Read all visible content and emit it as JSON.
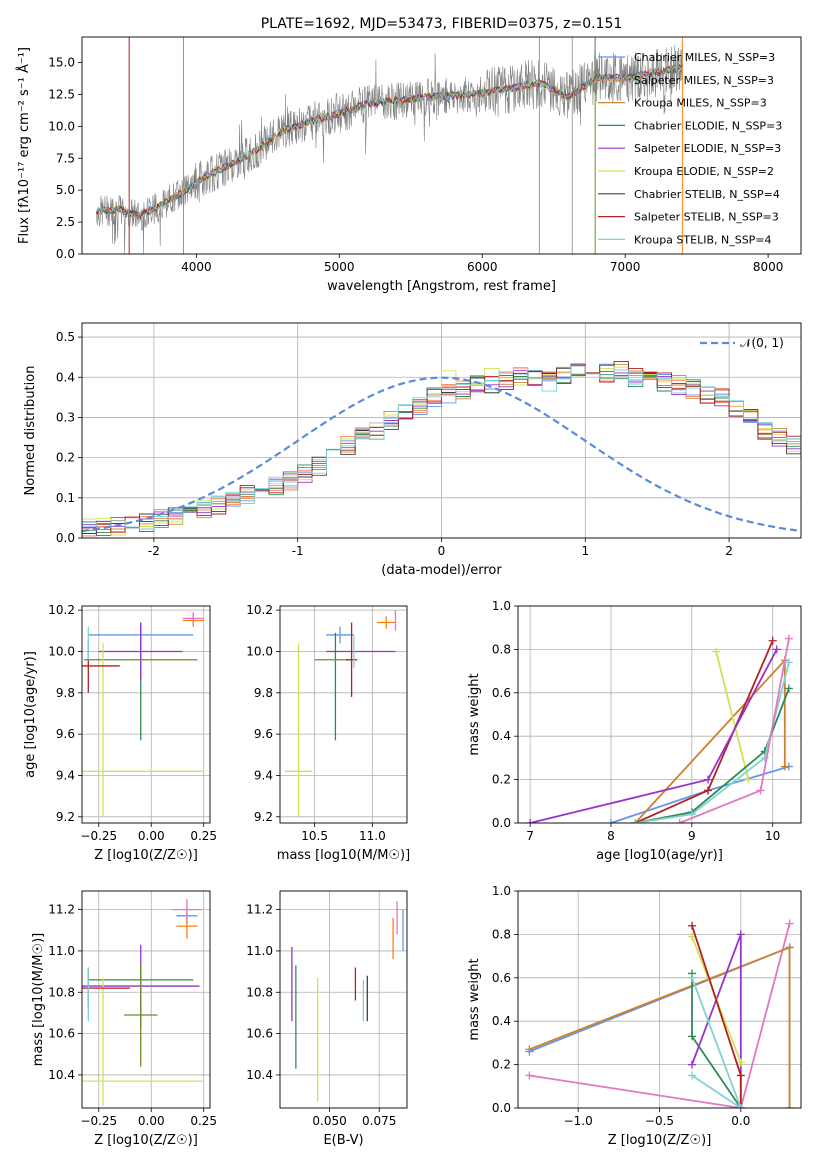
{
  "chart_data": [
    {
      "type": "line",
      "title": "PLATE=1692, MJD=53473, FIBERID=0375, z=0.151",
      "xlabel": "wavelength [Angstrom, rest frame]",
      "ylabel": "Flux [fλ10⁻¹⁷ erg cm⁻² s⁻¹ Å⁻¹]",
      "xlim": [
        3200,
        8230
      ],
      "ylim": [
        0,
        17
      ],
      "xticks": [
        4000,
        5000,
        6000,
        7000,
        8000
      ],
      "yticks": [
        0.0,
        2.5,
        5.0,
        7.5,
        10.0,
        12.5,
        15.0
      ],
      "grid": false,
      "legend_position": "top-right",
      "observed_spectrum": {
        "color": "#808080",
        "x_range": [
          3300,
          7400
        ],
        "shape_points": [
          {
            "x": 3300,
            "y": 3.3
          },
          {
            "x": 3450,
            "y": 3.5
          },
          {
            "x": 3600,
            "y": 3.0
          },
          {
            "x": 3750,
            "y": 3.8
          },
          {
            "x": 3900,
            "y": 4.8
          },
          {
            "x": 4050,
            "y": 6.0
          },
          {
            "x": 4200,
            "y": 6.8
          },
          {
            "x": 4400,
            "y": 8.0
          },
          {
            "x": 4600,
            "y": 9.6
          },
          {
            "x": 4800,
            "y": 10.4
          },
          {
            "x": 5000,
            "y": 11.0
          },
          {
            "x": 5200,
            "y": 11.8
          },
          {
            "x": 5400,
            "y": 12.0
          },
          {
            "x": 5600,
            "y": 12.3
          },
          {
            "x": 5800,
            "y": 12.4
          },
          {
            "x": 6000,
            "y": 12.6
          },
          {
            "x": 6200,
            "y": 13.0
          },
          {
            "x": 6400,
            "y": 13.4
          },
          {
            "x": 6600,
            "y": 12.3
          },
          {
            "x": 6800,
            "y": 13.8
          },
          {
            "x": 7000,
            "y": 13.8
          },
          {
            "x": 7200,
            "y": 14.2
          },
          {
            "x": 7400,
            "y": 14.6
          }
        ]
      },
      "vertical_lines": [
        {
          "x": 3530,
          "color": "#b22222"
        },
        {
          "x": 3910,
          "color": "#cd853f"
        },
        {
          "x": 6400,
          "color": "#a0a0a0"
        },
        {
          "x": 6630,
          "color": "#a0a0a0"
        },
        {
          "x": 6790,
          "color": "#6b8e23"
        },
        {
          "x": 7400,
          "color": "#ff7f0e"
        }
      ],
      "series": [
        {
          "name": "Chabrier MILES, N_SSP=3",
          "color": "#6495ed"
        },
        {
          "name": "Salpeter MILES, N_SSP=3",
          "color": "#ff7f50"
        },
        {
          "name": "Kroupa MILES, N_SSP=3",
          "color": "#cd853f"
        },
        {
          "name": "Chabrier ELODIE, N_SSP=3",
          "color": "#2e8b57"
        },
        {
          "name": "Salpeter ELODIE, N_SSP=3",
          "color": "#9932cc"
        },
        {
          "name": "Kroupa ELODIE, N_SSP=2",
          "color": "#d4e157"
        },
        {
          "name": "Chabrier STELIB, N_SSP=4",
          "color": "#404040"
        },
        {
          "name": "Salpeter STELIB, N_SSP=3",
          "color": "#b22222"
        },
        {
          "name": "Kroupa STELIB, N_SSP=4",
          "color": "#7fd3d3"
        }
      ]
    },
    {
      "type": "histogram",
      "xlabel": "(data-model)/error",
      "ylabel": "Normed distribution",
      "xlim": [
        -2.5,
        2.5
      ],
      "ylim": [
        0,
        0.535
      ],
      "xticks": [
        -2,
        -1,
        0,
        1,
        2
      ],
      "yticks": [
        0.0,
        0.1,
        0.2,
        0.3,
        0.4,
        0.5
      ],
      "grid": true,
      "legend_position": "top-right",
      "reference": {
        "label": "𝒩(0, 1)",
        "color": "#5b8bd9",
        "linestyle": "dashed"
      },
      "bin_edges_start": -2.5,
      "bin_width": 0.1,
      "hist_base": [
        0.03,
        0.03,
        0.03,
        0.03,
        0.04,
        0.05,
        0.05,
        0.06,
        0.07,
        0.08,
        0.09,
        0.11,
        0.12,
        0.13,
        0.14,
        0.16,
        0.18,
        0.21,
        0.23,
        0.25,
        0.27,
        0.29,
        0.31,
        0.33,
        0.35,
        0.36,
        0.37,
        0.38,
        0.38,
        0.39,
        0.4,
        0.4,
        0.39,
        0.4,
        0.41,
        0.42,
        0.41,
        0.42,
        0.4,
        0.4,
        0.39,
        0.38,
        0.37,
        0.36,
        0.35,
        0.32,
        0.3,
        0.27,
        0.25,
        0.23,
        0.22,
        0.2,
        0.18,
        0.17,
        0.15,
        0.13,
        0.12,
        0.11,
        0.1,
        0.09,
        0.08,
        0.07,
        0.06,
        0.05,
        0.05,
        0.04,
        0.04,
        0.04,
        0.03,
        0.03,
        0.03
      ],
      "series": [
        {
          "name": "Chabrier MILES",
          "color": "#6495ed"
        },
        {
          "name": "Salpeter MILES",
          "color": "#ff7f50"
        },
        {
          "name": "Kroupa MILES",
          "color": "#cd853f"
        },
        {
          "name": "Chabrier ELODIE",
          "color": "#2e8b57"
        },
        {
          "name": "Salpeter ELODIE",
          "color": "#9932cc"
        },
        {
          "name": "Kroupa ELODIE",
          "color": "#d4e157"
        },
        {
          "name": "Chabrier STELIB",
          "color": "#404040"
        },
        {
          "name": "Salpeter STELIB",
          "color": "#b22222"
        },
        {
          "name": "Kroupa STELIB",
          "color": "#7fd3d3"
        }
      ]
    },
    {
      "type": "scatter",
      "xlabel": "Z [log10(Z/Z☉)]",
      "ylabel": "age [log10(age/yr)]",
      "xlim": [
        -0.33,
        0.28
      ],
      "ylim": [
        9.17,
        10.22
      ],
      "xticks": [
        -0.25,
        0.0,
        0.25
      ],
      "xticklabels": [
        "−0.25",
        "0.00",
        "0.25"
      ],
      "yticks": [
        9.2,
        9.4,
        9.6,
        9.8,
        10.0,
        10.2
      ],
      "yticklabels": [
        "9.2",
        "9.4",
        "9.6",
        "9.8",
        "10.0",
        "10.2"
      ],
      "grid": true,
      "points": [
        {
          "x": -0.05,
          "y": 10.08,
          "xerr": 0.25,
          "yerr": 0.06,
          "color": "#6495ed"
        },
        {
          "x": 0.2,
          "y": 10.15,
          "xerr": 0.05,
          "yerr": 0.03,
          "color": "#ff7f0e"
        },
        {
          "x": 0.2,
          "y": 10.16,
          "xerr": 0.05,
          "yerr": 0.03,
          "color": "#e377c2"
        },
        {
          "x": -0.05,
          "y": 9.85,
          "xerr": 0.0,
          "yerr": 0.28,
          "color": "#2e8b57"
        },
        {
          "x": -0.05,
          "y": 10.0,
          "xerr": 0.2,
          "yerr": 0.14,
          "color": "#9932cc"
        },
        {
          "x": -0.05,
          "y": 9.96,
          "xerr": 0.27,
          "yerr": 0.0,
          "color": "#6b8e23"
        },
        {
          "x": -0.05,
          "y": 9.42,
          "xerr": 0.3,
          "yerr": 0.0,
          "color": "#d4e157"
        },
        {
          "x": -0.23,
          "y": 9.62,
          "xerr": 0.0,
          "yerr": 0.42,
          "color": "#d4e157"
        },
        {
          "x": -0.3,
          "y": 9.93,
          "xerr": 0.15,
          "yerr": 0.13,
          "color": "#b22222"
        },
        {
          "x": -0.3,
          "y": 10.04,
          "xerr": 0.0,
          "yerr": 0.08,
          "color": "#7fd3d3"
        }
      ]
    },
    {
      "type": "scatter",
      "xlabel": "mass [log10(M/M☉)]",
      "ylabel": "",
      "xlim": [
        10.2,
        11.3
      ],
      "ylim": [
        9.17,
        10.22
      ],
      "xticks": [
        10.5,
        11.0
      ],
      "xticklabels": [
        "10.5",
        "11.0"
      ],
      "yticks": [
        9.2,
        9.4,
        9.6,
        9.8,
        10.0,
        10.2
      ],
      "yticklabels": [
        "9.2",
        "9.4",
        "9.6",
        "9.8",
        "10.0",
        "10.2"
      ],
      "grid": true,
      "points": [
        {
          "x": 10.72,
          "y": 10.08,
          "xerr": 0.12,
          "yerr": 0.04,
          "color": "#6495ed"
        },
        {
          "x": 11.12,
          "y": 10.14,
          "xerr": 0.08,
          "yerr": 0.03,
          "color": "#ff7f0e"
        },
        {
          "x": 11.2,
          "y": 10.15,
          "xerr": 0.0,
          "yerr": 0.05,
          "color": "#e377c2"
        },
        {
          "x": 10.68,
          "y": 9.83,
          "xerr": 0.0,
          "yerr": 0.26,
          "color": "#2e8b57"
        },
        {
          "x": 10.9,
          "y": 10.0,
          "xerr": 0.3,
          "yerr": 0.0,
          "color": "#9932cc"
        },
        {
          "x": 10.68,
          "y": 9.96,
          "xerr": 0.18,
          "yerr": 0.0,
          "color": "#6b8e23"
        },
        {
          "x": 10.36,
          "y": 9.42,
          "xerr": 0.12,
          "yerr": 0.0,
          "color": "#d4e157"
        },
        {
          "x": 10.36,
          "y": 9.62,
          "xerr": 0.0,
          "yerr": 0.42,
          "color": "#d4e157"
        },
        {
          "x": 10.82,
          "y": 9.96,
          "xerr": 0.05,
          "yerr": 0.18,
          "color": "#b22222"
        },
        {
          "x": 10.84,
          "y": 10.0,
          "xerr": 0.0,
          "yerr": 0.08,
          "color": "#7fd3d3"
        }
      ]
    },
    {
      "type": "line",
      "xlabel": "age [log10(age/yr)]",
      "ylabel": "mass weight",
      "xlim": [
        6.85,
        10.35
      ],
      "ylim": [
        0,
        1.0
      ],
      "xticks": [
        7,
        8,
        9,
        10
      ],
      "yticks": [
        0.0,
        0.2,
        0.4,
        0.6,
        0.8,
        1.0
      ],
      "grid": true,
      "series": [
        {
          "name": "Chabrier MILES",
          "color": "#6495ed",
          "x": [
            8.0,
            9.2,
            10.2
          ],
          "y": [
            0.0,
            0.15,
            0.26
          ]
        },
        {
          "name": "Kroupa MILES",
          "color": "#d0802a",
          "x": [
            8.3,
            10.15,
            10.15
          ],
          "y": [
            0.0,
            0.75,
            0.26
          ]
        },
        {
          "name": "Kroupa ELODIE",
          "color": "#d4e157",
          "x": [
            9.3,
            9.7
          ],
          "y": [
            0.79,
            0.2
          ]
        },
        {
          "name": "Chabrier ELODIE",
          "color": "#2e8b57",
          "x": [
            8.3,
            9.0,
            9.9,
            10.2
          ],
          "y": [
            0.0,
            0.05,
            0.33,
            0.62
          ]
        },
        {
          "name": "Salpeter STELIB",
          "color": "#b22222",
          "x": [
            8.3,
            9.2,
            10.0
          ],
          "y": [
            0.0,
            0.15,
            0.84
          ]
        },
        {
          "name": "Kroupa STELIB",
          "color": "#7fd3d3",
          "x": [
            8.3,
            9.0,
            9.9,
            10.2
          ],
          "y": [
            0.0,
            0.04,
            0.3,
            0.74
          ]
        },
        {
          "name": "Salpeter ELODIE",
          "color": "#9932cc",
          "x": [
            7.0,
            9.2,
            10.05
          ],
          "y": [
            0.0,
            0.2,
            0.8
          ]
        },
        {
          "name": "Salpeter MILES",
          "color": "#e377c2",
          "x": [
            8.85,
            9.85,
            10.2
          ],
          "y": [
            0.0,
            0.15,
            0.85
          ]
        }
      ]
    },
    {
      "type": "scatter",
      "xlabel": "Z [log10(Z/Z☉)]",
      "ylabel": "mass [log10(M/M☉)]",
      "xlim": [
        -0.33,
        0.28
      ],
      "ylim": [
        10.24,
        11.29
      ],
      "xticks": [
        -0.25,
        0.0,
        0.25
      ],
      "xticklabels": [
        "−0.25",
        "0.00",
        "0.25"
      ],
      "yticks": [
        10.4,
        10.6,
        10.8,
        11.0,
        11.2
      ],
      "yticklabels": [
        "10.4",
        "10.6",
        "10.8",
        "11.0",
        "11.2"
      ],
      "grid": true,
      "points": [
        {
          "x": 0.17,
          "y": 11.17,
          "xerr": 0.05,
          "yerr": 0.04,
          "color": "#6495ed"
        },
        {
          "x": 0.17,
          "y": 11.12,
          "xerr": 0.05,
          "yerr": 0.06,
          "color": "#ff7f0e"
        },
        {
          "x": 0.17,
          "y": 11.2,
          "xerr": 0.07,
          "yerr": 0.05,
          "color": "#e377c2"
        },
        {
          "x": -0.05,
          "y": 10.86,
          "xerr": 0.25,
          "yerr": 0.0,
          "color": "#2e8b57"
        },
        {
          "x": -0.05,
          "y": 10.83,
          "xerr": 0.28,
          "yerr": 0.2,
          "color": "#9932cc"
        },
        {
          "x": -0.05,
          "y": 10.69,
          "xerr": 0.08,
          "yerr": 0.25,
          "color": "#6b8e23"
        },
        {
          "x": -0.05,
          "y": 10.37,
          "xerr": 0.3,
          "yerr": 0.0,
          "color": "#d4e157"
        },
        {
          "x": -0.23,
          "y": 10.56,
          "xerr": 0.0,
          "yerr": 0.31,
          "color": "#d4e157"
        },
        {
          "x": -0.3,
          "y": 10.82,
          "xerr": 0.2,
          "yerr": 0.1,
          "color": "#b22222"
        },
        {
          "x": -0.3,
          "y": 10.79,
          "xerr": 0.0,
          "yerr": 0.13,
          "color": "#7fd3d3"
        }
      ]
    },
    {
      "type": "scatter",
      "xlabel": "E(B-V)",
      "ylabel": "",
      "xlim": [
        0.025,
        0.089
      ],
      "ylim": [
        10.24,
        11.29
      ],
      "xticks": [
        0.05,
        0.075
      ],
      "xticklabels": [
        "0.050",
        "0.075"
      ],
      "yticks": [
        10.4,
        10.6,
        10.8,
        11.0,
        11.2
      ],
      "yticklabels": [
        "10.4",
        "10.6",
        "10.8",
        "11.0",
        "11.2"
      ],
      "grid": true,
      "points": [
        {
          "x": 0.031,
          "y": 10.84,
          "yerr": 0.18,
          "color": "#9932cc"
        },
        {
          "x": 0.033,
          "y": 10.68,
          "yerr": 0.25,
          "color": "#2e8b57"
        },
        {
          "x": 0.044,
          "y": 10.57,
          "yerr": 0.3,
          "color": "#d4e157"
        },
        {
          "x": 0.063,
          "y": 10.84,
          "yerr": 0.08,
          "color": "#b22222"
        },
        {
          "x": 0.067,
          "y": 10.76,
          "yerr": 0.1,
          "color": "#7fd3d3"
        },
        {
          "x": 0.069,
          "y": 10.77,
          "yerr": 0.11,
          "color": "#404040"
        },
        {
          "x": 0.082,
          "y": 11.06,
          "yerr": 0.1,
          "color": "#ff7f0e"
        },
        {
          "x": 0.084,
          "y": 11.16,
          "yerr": 0.08,
          "color": "#e377c2"
        },
        {
          "x": 0.087,
          "y": 11.1,
          "yerr": 0.1,
          "color": "#6495ed"
        }
      ]
    },
    {
      "type": "line",
      "xlabel": "Z [log10(Z/Z☉)]",
      "ylabel": "mass weight",
      "xlim": [
        -1.37,
        0.37
      ],
      "ylim": [
        0,
        1.0
      ],
      "xticks": [
        -1.0,
        -0.5,
        0.0
      ],
      "xticklabels": [
        "−1.0",
        "−0.5",
        "0.0"
      ],
      "yticks": [
        0.0,
        0.2,
        0.4,
        0.6,
        0.8,
        1.0
      ],
      "grid": true,
      "series": [
        {
          "name": "Chabrier MILES",
          "color": "#6495ed",
          "x": [
            -1.3,
            0.3,
            0.3
          ],
          "y": [
            0.26,
            0.74,
            0.0
          ]
        },
        {
          "name": "Salpeter MILES",
          "color": "#e377c2",
          "x": [
            -1.3,
            0.0,
            0.3
          ],
          "y": [
            0.15,
            0.0,
            0.85
          ]
        },
        {
          "name": "Kroupa MILES",
          "color": "#d0802a",
          "x": [
            -1.3,
            0.3,
            0.3
          ],
          "y": [
            0.27,
            0.74,
            0.0
          ]
        },
        {
          "name": "Chabrier ELODIE",
          "color": "#2e8b57",
          "x": [
            -0.3,
            -0.3,
            0.0
          ],
          "y": [
            0.62,
            0.33,
            0.0
          ]
        },
        {
          "name": "Salpeter ELODIE",
          "color": "#9932cc",
          "x": [
            -0.3,
            0.0,
            0.0
          ],
          "y": [
            0.2,
            0.8,
            0.0
          ]
        },
        {
          "name": "Kroupa ELODIE",
          "color": "#d4e157",
          "x": [
            -0.3,
            0.0
          ],
          "y": [
            0.79,
            0.21
          ]
        },
        {
          "name": "Salpeter STELIB",
          "color": "#b22222",
          "x": [
            -0.3,
            0.0,
            0.0
          ],
          "y": [
            0.84,
            0.15,
            0.0
          ]
        },
        {
          "name": "Kroupa STELIB",
          "color": "#7fd3d3",
          "x": [
            -0.3,
            0.0,
            -0.3
          ],
          "y": [
            0.6,
            0.0,
            0.15
          ]
        }
      ]
    }
  ]
}
